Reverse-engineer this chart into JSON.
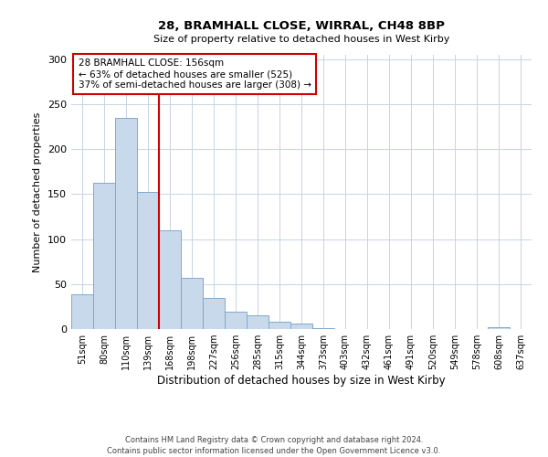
{
  "title": "28, BRAMHALL CLOSE, WIRRAL, CH48 8BP",
  "subtitle": "Size of property relative to detached houses in West Kirby",
  "xlabel": "Distribution of detached houses by size in West Kirby",
  "ylabel": "Number of detached properties",
  "bin_labels": [
    "51sqm",
    "80sqm",
    "110sqm",
    "139sqm",
    "168sqm",
    "198sqm",
    "227sqm",
    "256sqm",
    "285sqm",
    "315sqm",
    "344sqm",
    "373sqm",
    "403sqm",
    "432sqm",
    "461sqm",
    "491sqm",
    "520sqm",
    "549sqm",
    "578sqm",
    "608sqm",
    "637sqm"
  ],
  "bar_values": [
    39,
    163,
    235,
    153,
    110,
    57,
    35,
    19,
    15,
    8,
    6,
    1,
    0,
    0,
    0,
    0,
    0,
    0,
    0,
    2,
    0
  ],
  "bar_color": "#c9d9ec",
  "bar_edge_color": "#7fa8cd",
  "vline_x": 4,
  "vline_color": "#cc0000",
  "ylim": [
    0,
    305
  ],
  "yticks": [
    0,
    50,
    100,
    150,
    200,
    250,
    300
  ],
  "annotation_title": "28 BRAMHALL CLOSE: 156sqm",
  "annotation_line1": "← 63% of detached houses are smaller (525)",
  "annotation_line2": "37% of semi-detached houses are larger (308) →",
  "annotation_box_color": "#ffffff",
  "annotation_box_edge": "#cc0000",
  "footer1": "Contains HM Land Registry data © Crown copyright and database right 2024.",
  "footer2": "Contains public sector information licensed under the Open Government Licence v3.0.",
  "background_color": "#ffffff",
  "grid_color": "#c8d4e3"
}
